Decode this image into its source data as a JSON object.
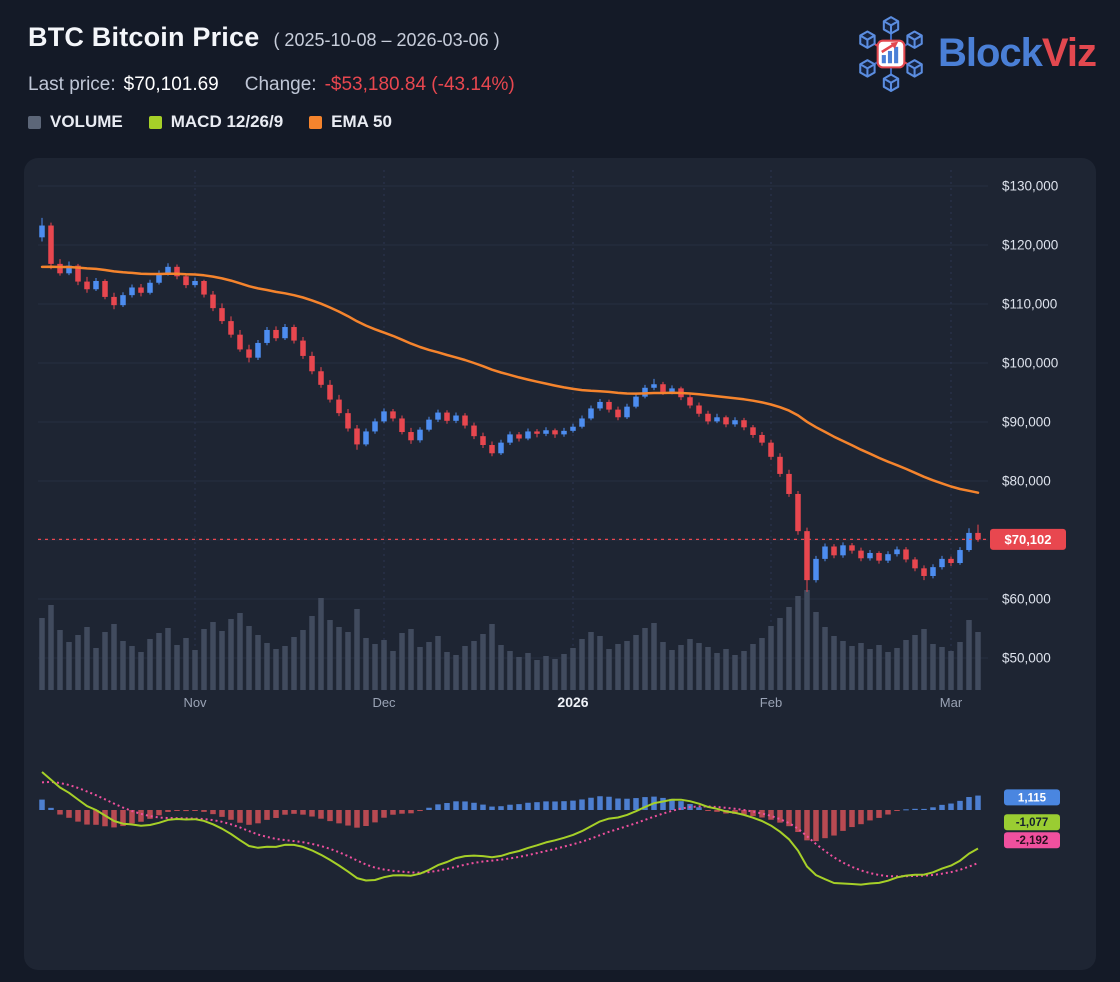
{
  "header": {
    "title": "BTC Bitcoin Price",
    "date_range": "( 2025-10-08 – 2026-03-06 )",
    "last_price_label": "Last price:",
    "last_price_value": "$70,101.69",
    "change_label": "Change:",
    "change_value": "-$53,180.84 (-43.14%)",
    "legend": [
      {
        "label": "VOLUME",
        "color": "#5c6678"
      },
      {
        "label": "MACD 12/26/9",
        "color": "#a6d028"
      },
      {
        "label": "EMA 50",
        "color": "#f5842d"
      }
    ],
    "logo": {
      "primary": "Block",
      "secondary": "Viz",
      "primary_color": "#4a7fd6",
      "secondary_color": "#e2484f"
    }
  },
  "chart_data": {
    "type": "candlestick",
    "title": "BTC Bitcoin Price",
    "start_date": "2025-10-08",
    "end_date": "2026-03-06",
    "last_price": 70101.69,
    "change_abs": -53180.84,
    "change_pct": -43.14,
    "price_line_label": "$70,102",
    "y_ticks": [
      {
        "value": 130000,
        "label": "$130,000"
      },
      {
        "value": 120000,
        "label": "$120,000"
      },
      {
        "value": 110000,
        "label": "$110,000"
      },
      {
        "value": 100000,
        "label": "$100,000"
      },
      {
        "value": 90000,
        "label": "$90,000"
      },
      {
        "value": 80000,
        "label": "$80,000"
      },
      {
        "value": 70000,
        "label": "$70,000"
      },
      {
        "value": 60000,
        "label": "$60,000"
      },
      {
        "value": 50000,
        "label": "$50,000"
      }
    ],
    "x_ticks": [
      {
        "index": 17,
        "label": "Nov"
      },
      {
        "index": 38,
        "label": "Dec"
      },
      {
        "index": 59,
        "label": "2026",
        "emphasis": true
      },
      {
        "index": 81,
        "label": "Feb"
      },
      {
        "index": 101,
        "label": "Mar"
      }
    ],
    "candle_fields": [
      "open",
      "high",
      "low",
      "close",
      "volume"
    ],
    "candles": [
      [
        121300,
        124600,
        120600,
        123300,
        72
      ],
      [
        123300,
        123800,
        115900,
        116800,
        85
      ],
      [
        116800,
        117600,
        114800,
        115200,
        60
      ],
      [
        115200,
        117200,
        114900,
        116500,
        48
      ],
      [
        116500,
        116800,
        113200,
        113800,
        55
      ],
      [
        113800,
        114600,
        111900,
        112500,
        63
      ],
      [
        112500,
        114400,
        112200,
        113900,
        42
      ],
      [
        113900,
        114200,
        110800,
        111200,
        58
      ],
      [
        111200,
        111900,
        109100,
        109800,
        66
      ],
      [
        109800,
        112000,
        109500,
        111500,
        49
      ],
      [
        111500,
        113300,
        111100,
        112800,
        44
      ],
      [
        112800,
        113400,
        111300,
        111900,
        38
      ],
      [
        111900,
        114100,
        111600,
        113600,
        51
      ],
      [
        113600,
        115700,
        113300,
        115200,
        57
      ],
      [
        115200,
        116900,
        114800,
        116300,
        62
      ],
      [
        116300,
        116700,
        114200,
        114700,
        45
      ],
      [
        114700,
        115200,
        112700,
        113200,
        52
      ],
      [
        113200,
        114500,
        112800,
        113900,
        40
      ],
      [
        113900,
        114100,
        111100,
        111600,
        61
      ],
      [
        111600,
        112200,
        108800,
        109300,
        68
      ],
      [
        109300,
        110100,
        106600,
        107100,
        59
      ],
      [
        107100,
        107900,
        104300,
        104800,
        71
      ],
      [
        104800,
        105600,
        101900,
        102300,
        77
      ],
      [
        102300,
        103100,
        100100,
        100900,
        64
      ],
      [
        100900,
        103900,
        100500,
        103400,
        55
      ],
      [
        103400,
        106100,
        103000,
        105600,
        47
      ],
      [
        105600,
        106200,
        103700,
        104200,
        41
      ],
      [
        104200,
        106600,
        103900,
        106100,
        44
      ],
      [
        106100,
        106500,
        103300,
        103800,
        53
      ],
      [
        103800,
        104400,
        100700,
        101200,
        60
      ],
      [
        101200,
        101900,
        98100,
        98600,
        74
      ],
      [
        98600,
        99300,
        95800,
        96300,
        92
      ],
      [
        96300,
        97100,
        93300,
        93800,
        70
      ],
      [
        93800,
        94600,
        91000,
        91500,
        63
      ],
      [
        91500,
        92200,
        88400,
        88900,
        58
      ],
      [
        88900,
        89500,
        85300,
        86200,
        81
      ],
      [
        86200,
        88900,
        85900,
        88400,
        52
      ],
      [
        88400,
        90600,
        88000,
        90100,
        46
      ],
      [
        90100,
        92300,
        89800,
        91800,
        50
      ],
      [
        91800,
        92200,
        90100,
        90600,
        39
      ],
      [
        90600,
        91100,
        87900,
        88300,
        57
      ],
      [
        88300,
        89000,
        86300,
        86900,
        61
      ],
      [
        86900,
        89100,
        86500,
        88700,
        43
      ],
      [
        88700,
        90900,
        88400,
        90400,
        48
      ],
      [
        90400,
        92100,
        90000,
        91600,
        54
      ],
      [
        91600,
        92000,
        89700,
        90200,
        38
      ],
      [
        90200,
        91600,
        89800,
        91100,
        35
      ],
      [
        91100,
        91500,
        88900,
        89400,
        44
      ],
      [
        89400,
        89900,
        87100,
        87600,
        49
      ],
      [
        87600,
        88200,
        85600,
        86100,
        56
      ],
      [
        86100,
        86700,
        84200,
        84700,
        66
      ],
      [
        84700,
        87000,
        84400,
        86500,
        45
      ],
      [
        86500,
        88400,
        86100,
        87900,
        39
      ],
      [
        87900,
        88300,
        86700,
        87200,
        33
      ],
      [
        87200,
        88900,
        86900,
        88400,
        37
      ],
      [
        88400,
        88800,
        87400,
        88000,
        30
      ],
      [
        88000,
        89100,
        87600,
        88600,
        34
      ],
      [
        88600,
        88900,
        87300,
        87900,
        31
      ],
      [
        87900,
        89000,
        87500,
        88500,
        36
      ],
      [
        88500,
        89700,
        88200,
        89200,
        42
      ],
      [
        89200,
        91100,
        88900,
        90600,
        51
      ],
      [
        90600,
        92800,
        90300,
        92300,
        58
      ],
      [
        92300,
        93900,
        91900,
        93400,
        54
      ],
      [
        93400,
        93800,
        91600,
        92100,
        41
      ],
      [
        92100,
        92600,
        90300,
        90800,
        46
      ],
      [
        90800,
        93100,
        90500,
        92600,
        49
      ],
      [
        92600,
        94800,
        92300,
        94300,
        55
      ],
      [
        94300,
        96300,
        94000,
        95800,
        62
      ],
      [
        95800,
        97300,
        95400,
        96400,
        67
      ],
      [
        96400,
        96800,
        94600,
        95100,
        48
      ],
      [
        95100,
        96200,
        94700,
        95700,
        40
      ],
      [
        95700,
        96000,
        93700,
        94200,
        45
      ],
      [
        94200,
        94700,
        92300,
        92800,
        51
      ],
      [
        92800,
        93300,
        90900,
        91400,
        47
      ],
      [
        91400,
        91900,
        89600,
        90100,
        43
      ],
      [
        90100,
        91400,
        89800,
        90800,
        37
      ],
      [
        90800,
        91100,
        89100,
        89600,
        41
      ],
      [
        89600,
        90800,
        89200,
        90300,
        35
      ],
      [
        90300,
        90700,
        88600,
        89100,
        39
      ],
      [
        89100,
        89500,
        87300,
        87800,
        46
      ],
      [
        87800,
        88300,
        86000,
        86500,
        52
      ],
      [
        86500,
        87000,
        83600,
        84100,
        64
      ],
      [
        84100,
        84700,
        80700,
        81200,
        72
      ],
      [
        81200,
        81900,
        77300,
        77800,
        83
      ],
      [
        77800,
        78300,
        70900,
        71500,
        94
      ],
      [
        71500,
        72100,
        61200,
        63200,
        100
      ],
      [
        63200,
        67300,
        62800,
        66800,
        78
      ],
      [
        66800,
        69400,
        66400,
        68900,
        63
      ],
      [
        68900,
        69300,
        66900,
        67400,
        54
      ],
      [
        67400,
        69600,
        67000,
        69100,
        49
      ],
      [
        69100,
        69500,
        67700,
        68200,
        44
      ],
      [
        68200,
        68700,
        66400,
        66900,
        47
      ],
      [
        66900,
        68300,
        66500,
        67800,
        41
      ],
      [
        67800,
        68100,
        66000,
        66500,
        45
      ],
      [
        66500,
        68100,
        66100,
        67600,
        38
      ],
      [
        67600,
        68900,
        67200,
        68400,
        42
      ],
      [
        68400,
        68800,
        66200,
        66700,
        50
      ],
      [
        66700,
        67100,
        64700,
        65200,
        55
      ],
      [
        65200,
        65700,
        63200,
        63900,
        61
      ],
      [
        63900,
        65900,
        63500,
        65400,
        46
      ],
      [
        65400,
        67300,
        65000,
        66800,
        43
      ],
      [
        66800,
        67200,
        65600,
        66100,
        39
      ],
      [
        66100,
        68800,
        65800,
        68300,
        48
      ],
      [
        68300,
        72000,
        68000,
        71200,
        70
      ],
      [
        71200,
        72600,
        69700,
        70101.69,
        58
      ]
    ],
    "indicators": {
      "volume": {
        "name": "VOLUME",
        "color": "#414b5e"
      },
      "ema": {
        "name": "EMA 50",
        "period": 50,
        "seed": 116000,
        "color": "#f5842d"
      },
      "macd": {
        "name": "MACD 12/26/9",
        "fast": 12,
        "slow": 26,
        "signal": 9,
        "seed_fast": 122000,
        "seed_slow": 118500,
        "seed_signal": 2200,
        "line_color": "#a6d028",
        "signal_color": "#f0509e",
        "hist_pos_color": "#4d7fd0",
        "hist_neg_color": "#b84a52",
        "badges": [
          {
            "label": "1,115",
            "value": 1115,
            "bg": "#4a86e0",
            "fg": "#ffffff"
          },
          {
            "label": "-1,077",
            "value": -1077,
            "bg": "#9acd32",
            "fg": "#15202e"
          },
          {
            "label": "-2,192",
            "value": -2192,
            "bg": "#f0509e",
            "fg": "#2a1020"
          }
        ]
      }
    },
    "colors": {
      "up": "#4d8df0",
      "down": "#e8474f",
      "grid": "#262e42",
      "vgrid": "#2c3550",
      "axis_text": "#dde2ec",
      "x_text": "#9aa3b5",
      "price_line": "#e8474f",
      "price_badge_bg": "#e8474f",
      "price_badge_fg": "#ffffff"
    }
  }
}
